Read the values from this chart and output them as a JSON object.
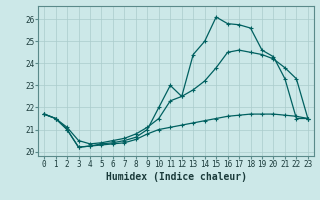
{
  "xlabel": "Humidex (Indice chaleur)",
  "background_color": "#cce8e8",
  "grid_color": "#aacccc",
  "line_color": "#006060",
  "xlim": [
    -0.5,
    23.5
  ],
  "ylim": [
    19.8,
    26.6
  ],
  "yticks": [
    20,
    21,
    22,
    23,
    24,
    25,
    26
  ],
  "xticks": [
    0,
    1,
    2,
    3,
    4,
    5,
    6,
    7,
    8,
    9,
    10,
    11,
    12,
    13,
    14,
    15,
    16,
    17,
    18,
    19,
    20,
    21,
    22,
    23
  ],
  "tick_fontsize": 5.5,
  "xlabel_fontsize": 7,
  "line1_x": [
    0,
    1,
    2,
    3,
    4,
    5,
    6,
    7,
    8,
    9,
    10,
    11,
    12,
    13,
    14,
    15,
    16,
    17,
    18,
    19,
    20,
    21,
    22,
    23
  ],
  "line1_y": [
    21.7,
    21.5,
    21.0,
    20.2,
    20.25,
    20.3,
    20.35,
    20.4,
    20.55,
    20.8,
    21.0,
    21.1,
    21.2,
    21.3,
    21.4,
    21.5,
    21.6,
    21.65,
    21.7,
    21.7,
    21.7,
    21.65,
    21.6,
    21.5
  ],
  "line2_x": [
    0,
    1,
    2,
    3,
    4,
    5,
    6,
    7,
    8,
    9,
    10,
    11,
    12,
    13,
    14,
    15,
    16,
    17,
    18,
    19,
    20,
    21,
    22,
    23
  ],
  "line2_y": [
    21.7,
    21.5,
    21.1,
    20.5,
    20.35,
    20.4,
    20.5,
    20.6,
    20.8,
    21.1,
    21.5,
    22.3,
    22.5,
    22.8,
    23.2,
    23.8,
    24.5,
    24.6,
    24.5,
    24.4,
    24.2,
    23.8,
    23.3,
    21.5
  ],
  "line3_x": [
    0,
    1,
    2,
    3,
    4,
    5,
    6,
    7,
    8,
    9,
    10,
    11,
    12,
    13,
    14,
    15,
    16,
    17,
    18,
    19,
    20,
    21,
    22,
    23
  ],
  "line3_y": [
    21.7,
    21.5,
    21.0,
    20.2,
    20.25,
    20.35,
    20.4,
    20.5,
    20.65,
    21.0,
    22.0,
    23.0,
    22.5,
    24.4,
    25.0,
    26.1,
    25.8,
    25.75,
    25.6,
    24.6,
    24.3,
    23.3,
    21.5,
    21.5
  ]
}
